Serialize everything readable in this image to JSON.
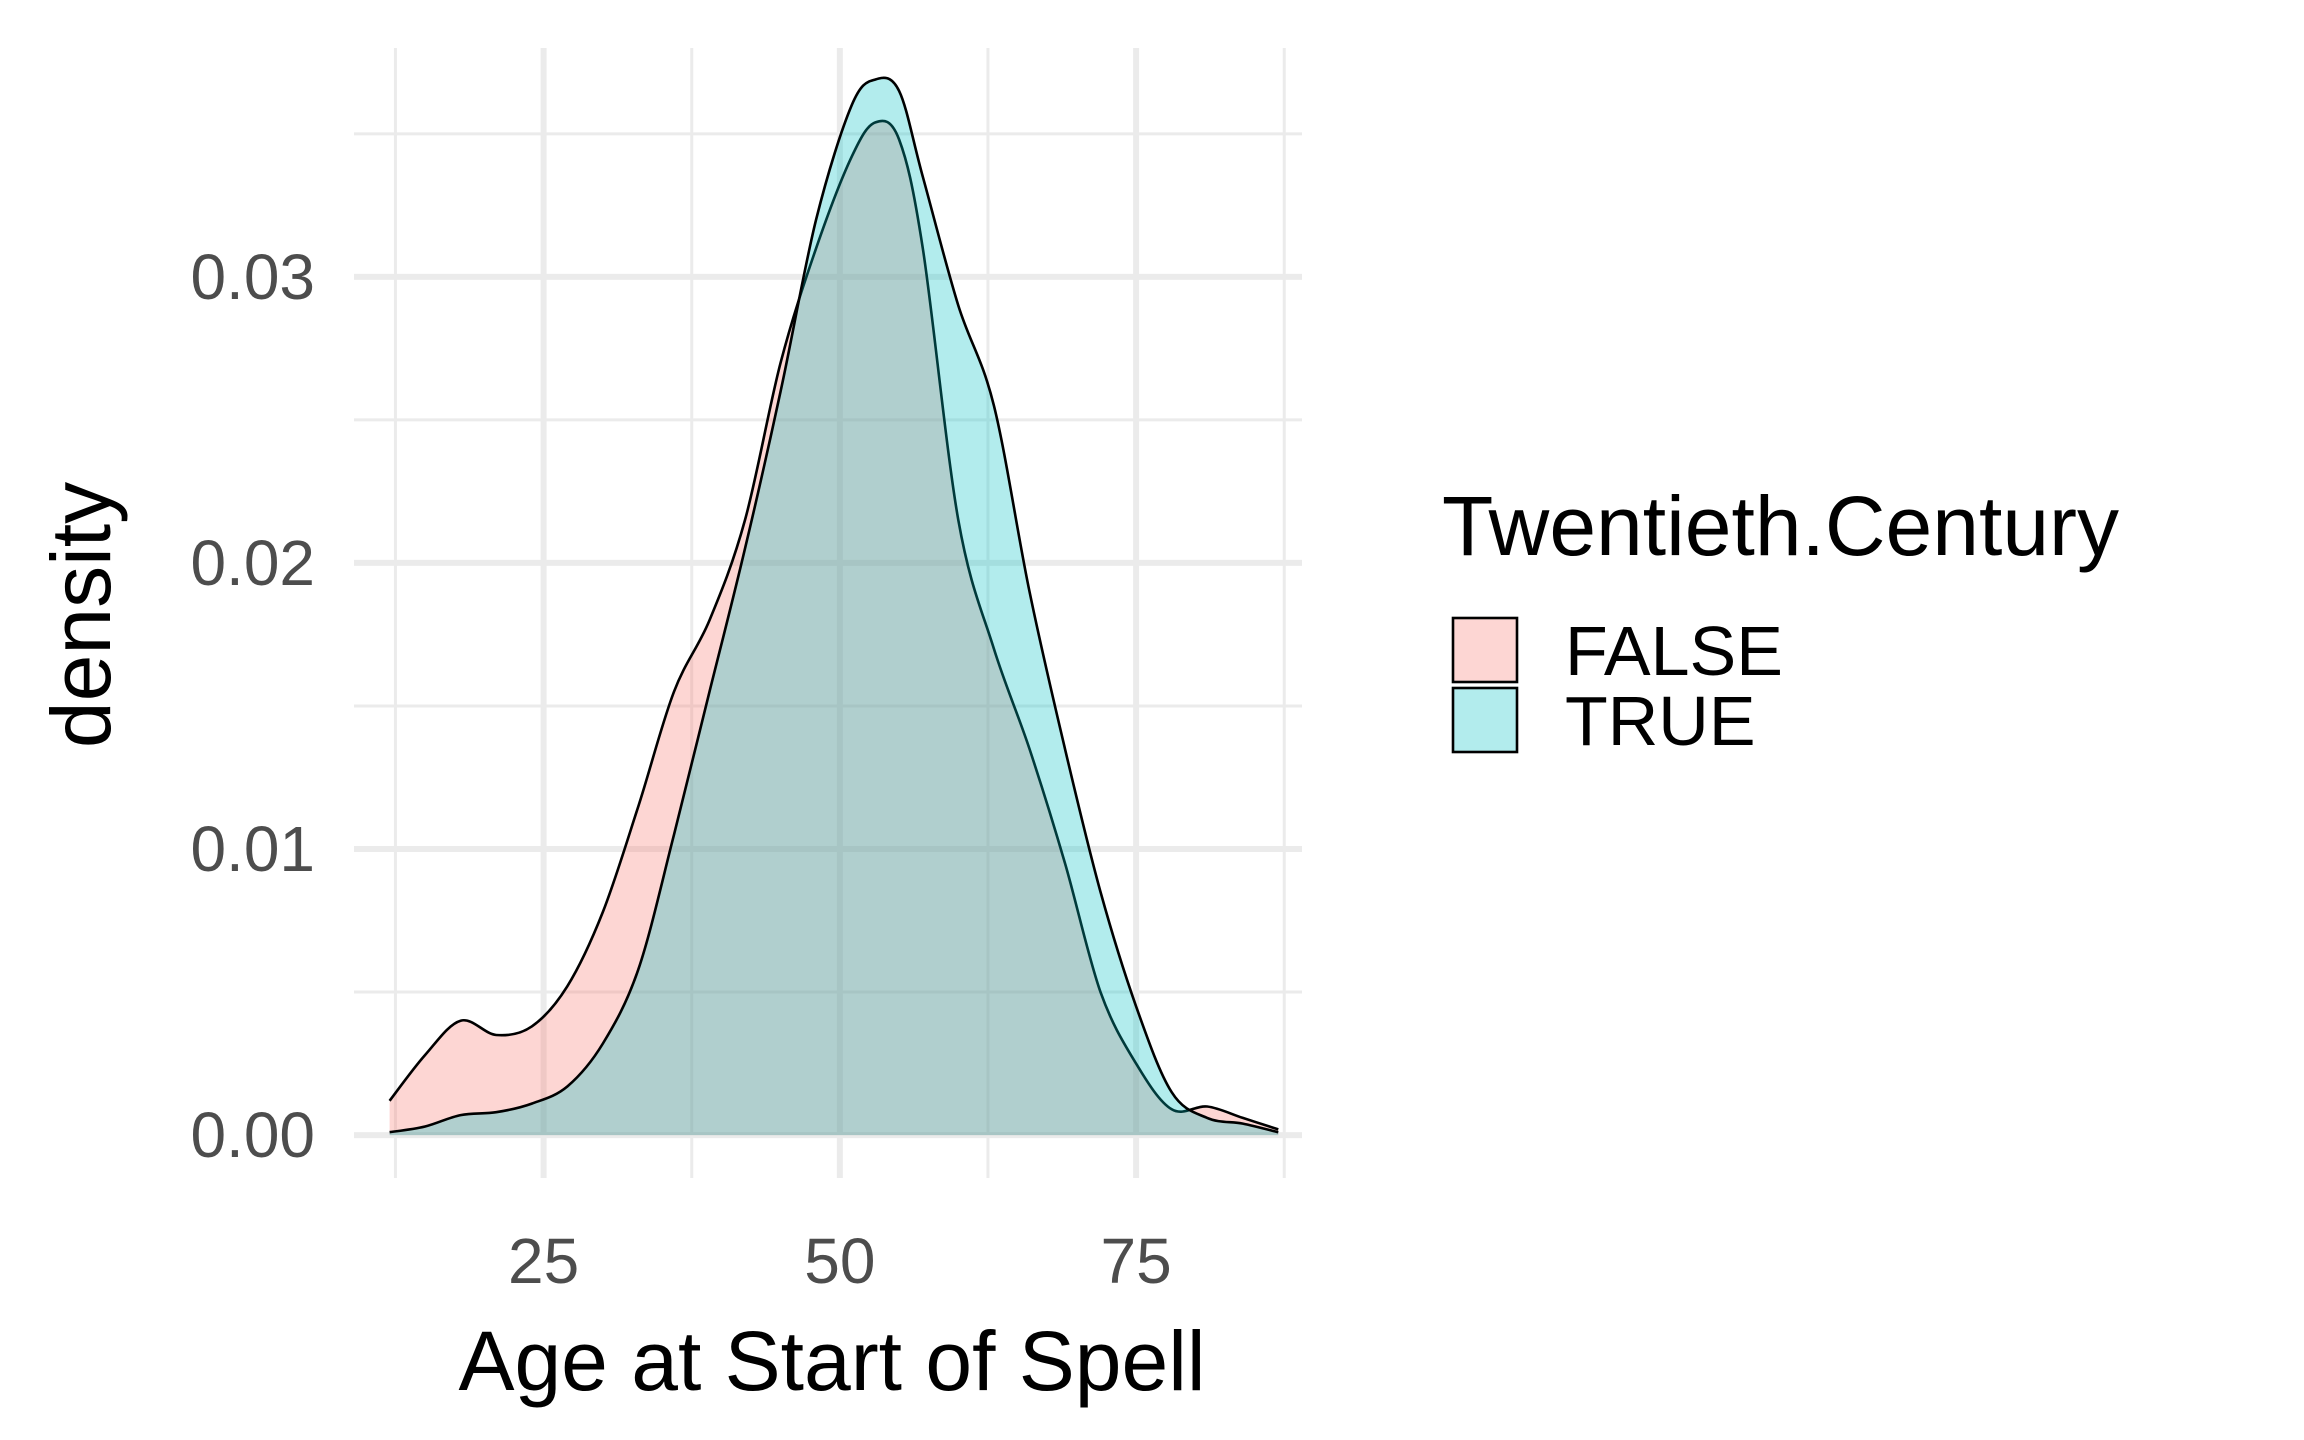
{
  "chart_data": {
    "type": "area",
    "subtype": "density",
    "title": "",
    "xlabel": "Age at Start of Spell",
    "ylabel": "density",
    "xlim": [
      9,
      89
    ],
    "ylim": [
      -0.0015,
      0.038
    ],
    "x_ticks": [
      25,
      50,
      75
    ],
    "y_ticks": [
      0,
      0.01,
      0.02,
      0.03
    ],
    "x_tick_labels": [
      "25",
      "50",
      "75"
    ],
    "y_tick_labels": [
      "0.00",
      "0.01",
      "0.02",
      "0.03"
    ],
    "x_minor_ticks": [
      12.5,
      37.5,
      62.5,
      87.5
    ],
    "y_minor_ticks": [
      0.005,
      0.015,
      0.025,
      0.035
    ],
    "grid": true,
    "legend": {
      "title": "Twentieth.Century",
      "position": "right"
    },
    "series": [
      {
        "name": "FALSE",
        "color": "#F8766D",
        "fill": "#F8766D",
        "opacity": 0.3,
        "x": [
          12,
          15,
          18,
          21,
          24,
          27,
          30,
          33,
          36,
          39,
          42,
          45,
          48,
          51,
          53,
          55,
          57,
          60,
          63,
          66,
          69,
          72,
          75,
          78,
          81,
          84,
          87
        ],
        "y": [
          0.0012,
          0.0028,
          0.004,
          0.0035,
          0.0038,
          0.0052,
          0.0078,
          0.0115,
          0.0155,
          0.018,
          0.0215,
          0.027,
          0.031,
          0.0342,
          0.0354,
          0.0348,
          0.031,
          0.0215,
          0.017,
          0.0135,
          0.0095,
          0.005,
          0.0025,
          0.0009,
          0.001,
          0.0006,
          0.0002
        ]
      },
      {
        "name": "TRUE",
        "color": "#00BFC4",
        "fill": "#00BFC4",
        "opacity": 0.3,
        "x": [
          12,
          15,
          18,
          21,
          24,
          27,
          30,
          33,
          36,
          39,
          42,
          45,
          48,
          51,
          53,
          55,
          57,
          60,
          63,
          66,
          69,
          72,
          75,
          78,
          81,
          84,
          87
        ],
        "y": [
          0.0001,
          0.0003,
          0.0007,
          0.0008,
          0.0011,
          0.0017,
          0.0032,
          0.0058,
          0.0105,
          0.0155,
          0.0205,
          0.026,
          0.032,
          0.036,
          0.0369,
          0.0365,
          0.0335,
          0.029,
          0.0255,
          0.019,
          0.0135,
          0.0085,
          0.0045,
          0.0015,
          0.0006,
          0.0004,
          0.0001
        ]
      }
    ]
  }
}
